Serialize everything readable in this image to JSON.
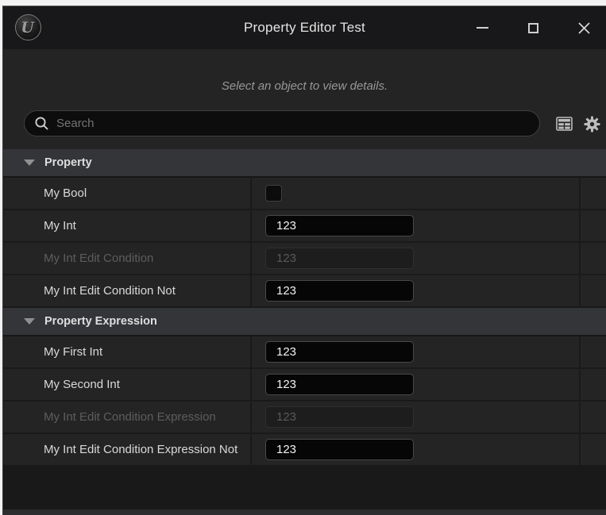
{
  "window": {
    "title": "Property Editor Test",
    "icons": {
      "logo": "unreal-engine-logo",
      "minimize": "minimize-icon",
      "maximize": "maximize-icon",
      "close": "close-icon"
    }
  },
  "details_panel": {
    "hint": "Select an object to view details.",
    "search": {
      "placeholder": "Search",
      "value": "",
      "icons": [
        "search-icon",
        "display-filter-icon",
        "settings-gear-icon"
      ]
    },
    "sections": [
      {
        "label": "Property",
        "rows": [
          {
            "label": "My Bool",
            "type": "checkbox",
            "checked": false,
            "enabled": true
          },
          {
            "label": "My Int",
            "type": "text",
            "value": "123",
            "enabled": true
          },
          {
            "label": "My Int Edit Condition",
            "type": "text",
            "value": "123",
            "enabled": false
          },
          {
            "label": "My Int Edit Condition Not",
            "type": "text",
            "value": "123",
            "enabled": true
          }
        ]
      },
      {
        "label": "Property Expression",
        "rows": [
          {
            "label": "My First Int",
            "type": "text",
            "value": "123",
            "enabled": true
          },
          {
            "label": "My Second Int",
            "type": "text",
            "value": "123",
            "enabled": true
          },
          {
            "label": "My Int Edit Condition Expression",
            "type": "text",
            "value": "123",
            "enabled": false
          },
          {
            "label": "My Int Edit Condition Expression Not",
            "type": "text",
            "value": "123",
            "enabled": true
          }
        ]
      }
    ]
  },
  "colors": {
    "titlebar_bg": "#18181a",
    "panel_bg": "#242424",
    "category_bg": "#343539",
    "row_separator": "#1a1a1a",
    "input_bg": "#060606",
    "input_border": "#484848",
    "text_primary": "#d9d9d9",
    "text_disabled": "#5d5d5d",
    "empty_bg": "#191919"
  }
}
